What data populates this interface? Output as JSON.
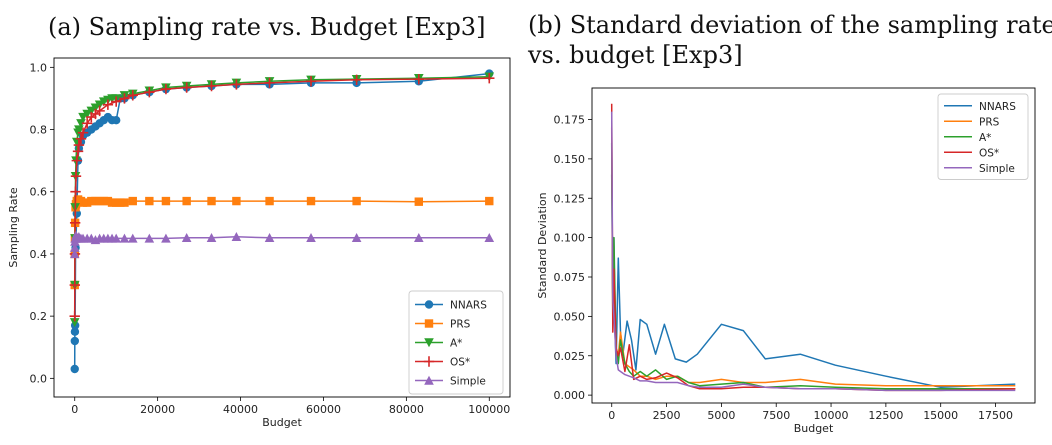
{
  "panels": {
    "left_title": "(a) Sampling rate vs. Budget [Exp3]",
    "right_title_line1": "(b) Standard deviation of the sampling rate",
    "right_title_line2": "vs. budget [Exp3]"
  },
  "colors": {
    "NNARS": "#1f77b4",
    "PRS": "#ff7f0e",
    "A*": "#2ca02c",
    "OS*": "#d62728",
    "Simple": "#9467bd"
  },
  "chart_data": [
    {
      "type": "line",
      "title": "(a) Sampling rate vs. Budget [Exp3]",
      "xlabel": "Budget",
      "ylabel": "Sampling Rate",
      "xlim": [
        -5000,
        105000
      ],
      "ylim": [
        -0.06,
        1.03
      ],
      "xticks": [
        0,
        20000,
        40000,
        60000,
        80000,
        100000
      ],
      "yticks": [
        0.0,
        0.2,
        0.4,
        0.6,
        0.8,
        1.0
      ],
      "xtick_labels": [
        "0",
        "20000",
        "40000",
        "60000",
        "80000",
        "100000"
      ],
      "ytick_labels": [
        "0.0",
        "0.2",
        "0.4",
        "0.6",
        "0.8",
        "1.0"
      ],
      "legend_placement": "lower-right",
      "series": [
        {
          "name": "NNARS",
          "marker": "circle",
          "x": [
            0,
            20,
            50,
            100,
            200,
            300,
            500,
            800,
            1000,
            1500,
            2000,
            3000,
            4000,
            5000,
            6000,
            7000,
            8000,
            9000,
            10000,
            11000,
            12000,
            14000,
            18000,
            22000,
            27000,
            33000,
            39000,
            47000,
            57000,
            68000,
            83000,
            100000
          ],
          "y": [
            0.03,
            0.12,
            0.15,
            0.17,
            0.42,
            0.45,
            0.53,
            0.7,
            0.74,
            0.76,
            0.78,
            0.79,
            0.8,
            0.81,
            0.82,
            0.83,
            0.84,
            0.83,
            0.83,
            0.9,
            0.9,
            0.91,
            0.92,
            0.93,
            0.935,
            0.94,
            0.945,
            0.945,
            0.95,
            0.95,
            0.955,
            0.98
          ]
        },
        {
          "name": "PRS",
          "marker": "square",
          "x": [
            0,
            20,
            50,
            100,
            200,
            300,
            500,
            800,
            1000,
            1500,
            2000,
            3000,
            4000,
            5000,
            6000,
            7000,
            8000,
            9000,
            10000,
            11000,
            12000,
            14000,
            18000,
            22000,
            27000,
            33000,
            39000,
            47000,
            57000,
            68000,
            83000,
            100000
          ],
          "y": [
            0.3,
            0.4,
            0.45,
            0.5,
            0.55,
            0.56,
            0.57,
            0.575,
            0.57,
            0.57,
            0.565,
            0.565,
            0.57,
            0.57,
            0.57,
            0.57,
            0.57,
            0.565,
            0.565,
            0.565,
            0.565,
            0.57,
            0.57,
            0.57,
            0.57,
            0.57,
            0.57,
            0.57,
            0.57,
            0.57,
            0.568,
            0.57
          ]
        },
        {
          "name": "A*",
          "marker": "triangle-down",
          "x": [
            0,
            20,
            50,
            100,
            200,
            300,
            500,
            800,
            1000,
            1500,
            2000,
            3000,
            4000,
            5000,
            6000,
            7000,
            8000,
            9000,
            10000,
            12000,
            14000,
            18000,
            22000,
            27000,
            33000,
            39000,
            47000,
            57000,
            68000,
            83000,
            100000
          ],
          "y": [
            0.18,
            0.3,
            0.45,
            0.55,
            0.65,
            0.7,
            0.76,
            0.79,
            0.8,
            0.82,
            0.84,
            0.85,
            0.86,
            0.87,
            0.88,
            0.89,
            0.895,
            0.9,
            0.9,
            0.91,
            0.915,
            0.925,
            0.935,
            0.94,
            0.945,
            0.95,
            0.955,
            0.96,
            0.962,
            0.965,
            0.97
          ]
        },
        {
          "name": "OS*",
          "marker": "plus",
          "x": [
            0,
            20,
            50,
            100,
            200,
            300,
            500,
            800,
            1000,
            1500,
            2000,
            3000,
            4000,
            5000,
            6000,
            8000,
            10000,
            12000,
            14000,
            18000,
            22000,
            27000,
            33000,
            39000,
            47000,
            57000,
            68000,
            83000,
            100000
          ],
          "y": [
            0.2,
            0.3,
            0.4,
            0.5,
            0.6,
            0.65,
            0.7,
            0.73,
            0.75,
            0.77,
            0.79,
            0.82,
            0.84,
            0.85,
            0.86,
            0.88,
            0.89,
            0.9,
            0.91,
            0.92,
            0.93,
            0.935,
            0.94,
            0.945,
            0.95,
            0.955,
            0.96,
            0.962,
            0.965
          ]
        },
        {
          "name": "Simple",
          "marker": "triangle-up",
          "x": [
            0,
            20,
            50,
            100,
            200,
            300,
            500,
            800,
            1000,
            1500,
            2000,
            3000,
            4000,
            5000,
            6000,
            7000,
            8000,
            9000,
            10000,
            12000,
            14000,
            18000,
            22000,
            27000,
            33000,
            39000,
            47000,
            57000,
            68000,
            83000,
            100000
          ],
          "y": [
            0.4,
            0.42,
            0.44,
            0.45,
            0.45,
            0.46,
            0.45,
            0.45,
            0.455,
            0.45,
            0.45,
            0.45,
            0.45,
            0.445,
            0.45,
            0.45,
            0.45,
            0.45,
            0.45,
            0.45,
            0.45,
            0.45,
            0.45,
            0.452,
            0.452,
            0.455,
            0.452,
            0.452,
            0.452,
            0.452,
            0.452
          ]
        }
      ]
    },
    {
      "type": "line",
      "title": "(b) Standard deviation of the sampling rate vs. budget [Exp3]",
      "xlabel": "Budget",
      "ylabel": "Standard Deviation",
      "xlim": [
        -900,
        19300
      ],
      "ylim": [
        -0.005,
        0.195
      ],
      "xticks": [
        0,
        2500,
        5000,
        7500,
        10000,
        12500,
        15000,
        17500
      ],
      "yticks": [
        0.0,
        0.025,
        0.05,
        0.075,
        0.1,
        0.125,
        0.15,
        0.175
      ],
      "xtick_labels": [
        "0",
        "2500",
        "5000",
        "7500",
        "10000",
        "12500",
        "15000",
        "17500"
      ],
      "ytick_labels": [
        "0.000",
        "0.025",
        "0.050",
        "0.075",
        "0.100",
        "0.125",
        "0.150",
        "0.175"
      ],
      "legend_placement": "top-right",
      "series": [
        {
          "name": "NNARS",
          "x": [
            0,
            50,
            100,
            150,
            200,
            300,
            400,
            500,
            700,
            900,
            1100,
            1300,
            1600,
            2000,
            2400,
            2900,
            3400,
            3900,
            5000,
            6000,
            7000,
            8600,
            10200,
            12500,
            15000,
            18400
          ],
          "y": [
            0.14,
            0.06,
            0.1,
            0.04,
            0.02,
            0.087,
            0.04,
            0.025,
            0.047,
            0.035,
            0.016,
            0.048,
            0.045,
            0.026,
            0.045,
            0.023,
            0.021,
            0.026,
            0.045,
            0.041,
            0.023,
            0.026,
            0.019,
            0.012,
            0.005,
            0.007
          ]
        },
        {
          "name": "PRS",
          "x": [
            0,
            50,
            100,
            200,
            300,
            400,
            600,
            800,
            1000,
            1300,
            1600,
            2000,
            2500,
            3000,
            3500,
            4000,
            5000,
            6000,
            7000,
            8600,
            10200,
            12500,
            15000,
            18400
          ],
          "y": [
            0.17,
            0.05,
            0.09,
            0.03,
            0.025,
            0.04,
            0.02,
            0.018,
            0.016,
            0.012,
            0.012,
            0.01,
            0.012,
            0.012,
            0.008,
            0.008,
            0.01,
            0.008,
            0.008,
            0.01,
            0.007,
            0.006,
            0.006,
            0.006
          ]
        },
        {
          "name": "A*",
          "x": [
            0,
            50,
            100,
            200,
            300,
            400,
            600,
            800,
            1000,
            1300,
            1600,
            2000,
            2500,
            3000,
            3500,
            4000,
            5000,
            6000,
            7000,
            8600,
            10200,
            12500,
            15000,
            18400
          ],
          "y": [
            0.16,
            0.045,
            0.1,
            0.03,
            0.02,
            0.035,
            0.02,
            0.015,
            0.012,
            0.015,
            0.012,
            0.016,
            0.01,
            0.012,
            0.008,
            0.006,
            0.007,
            0.008,
            0.005,
            0.006,
            0.005,
            0.004,
            0.004,
            0.004
          ]
        },
        {
          "name": "OS*",
          "x": [
            0,
            50,
            100,
            200,
            300,
            400,
            600,
            800,
            1000,
            1300,
            1600,
            2000,
            2500,
            3000,
            3500,
            4000,
            5000,
            6000,
            7000,
            8600,
            10200,
            12500,
            15000,
            18400
          ],
          "y": [
            0.185,
            0.04,
            0.08,
            0.03,
            0.025,
            0.03,
            0.015,
            0.032,
            0.01,
            0.012,
            0.01,
            0.011,
            0.014,
            0.011,
            0.006,
            0.004,
            0.004,
            0.005,
            0.005,
            0.004,
            0.004,
            0.003,
            0.003,
            0.004
          ]
        },
        {
          "name": "Simple",
          "x": [
            0,
            50,
            100,
            200,
            300,
            400,
            600,
            800,
            1000,
            1300,
            1600,
            2000,
            2500,
            3000,
            3500,
            4000,
            5000,
            6000,
            7000,
            8600,
            10200,
            12500,
            15000,
            18400
          ],
          "y": [
            0.18,
            0.06,
            0.05,
            0.025,
            0.016,
            0.015,
            0.013,
            0.012,
            0.011,
            0.009,
            0.009,
            0.008,
            0.008,
            0.008,
            0.006,
            0.005,
            0.005,
            0.007,
            0.005,
            0.004,
            0.004,
            0.003,
            0.003,
            0.003
          ]
        }
      ]
    }
  ]
}
